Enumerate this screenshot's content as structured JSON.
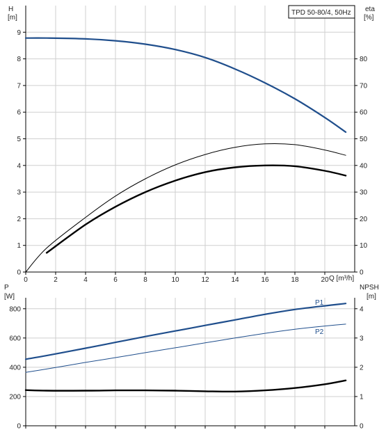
{
  "chart_data": [
    {
      "type": "line",
      "title": "TPD 50-80/4, 50Hz",
      "xlabel": "Q [m³/h]",
      "ylabel_left_name": "H",
      "ylabel_left_unit": "[m]",
      "ylabel_right_name": "eta",
      "ylabel_right_unit": "[%]",
      "xlim": [
        0,
        22
      ],
      "ylim_left": [
        0,
        10
      ],
      "ylim_right": [
        0,
        100
      ],
      "x_ticks": [
        "0",
        "2",
        "4",
        "6",
        "8",
        "10",
        "12",
        "14",
        "16",
        "18",
        "20"
      ],
      "y_left_ticks": [
        "0",
        "1",
        "2",
        "3",
        "4",
        "5",
        "6",
        "7",
        "8",
        "9"
      ],
      "y_right_ticks": [
        "0",
        "10",
        "20",
        "30",
        "40",
        "50",
        "60",
        "70",
        "80"
      ],
      "grid": true,
      "series": [
        {
          "axis": "left",
          "color": "#1f4e8c",
          "width": 2.2,
          "x": [
            0,
            1.4,
            4,
            6,
            8,
            10,
            12,
            14,
            16,
            18,
            20,
            21.4
          ],
          "y": [
            8.78,
            8.78,
            8.75,
            8.68,
            8.55,
            8.35,
            8.05,
            7.62,
            7.1,
            6.5,
            5.8,
            5.25
          ]
        },
        {
          "axis": "right",
          "color": "#000000",
          "width": 1,
          "x": [
            0,
            1.4,
            4,
            6,
            8,
            10,
            12,
            14,
            16,
            18,
            20,
            21.4
          ],
          "y": [
            0,
            9,
            20.5,
            28.5,
            35,
            40.2,
            44.1,
            46.8,
            48.1,
            47.8,
            45.8,
            43.8
          ]
        },
        {
          "axis": "left",
          "color": "#000000",
          "width": 2.4,
          "x": [
            1.4,
            4,
            6,
            8,
            10,
            12,
            14,
            16,
            18,
            20,
            21.4
          ],
          "y": [
            0.72,
            1.78,
            2.45,
            3.0,
            3.43,
            3.75,
            3.93,
            4.0,
            3.97,
            3.8,
            3.62
          ]
        }
      ]
    },
    {
      "type": "line",
      "xlabel": "",
      "ylabel_left_name": "P",
      "ylabel_left_unit": "[W]",
      "ylabel_right_name": "NPSH",
      "ylabel_right_unit": "[m]",
      "xlim": [
        0,
        22
      ],
      "ylim_left": [
        0,
        875
      ],
      "ylim_right": [
        0,
        4.375
      ],
      "y_left_ticks": [
        "0",
        "200",
        "400",
        "600",
        "800"
      ],
      "y_right_ticks": [
        "0",
        "1",
        "2",
        "3",
        "4"
      ],
      "grid": true,
      "series": [
        {
          "name": "P1",
          "axis": "left",
          "color": "#1f4e8c",
          "width": 2.2,
          "x": [
            0,
            1.4,
            4,
            6,
            8,
            10,
            12,
            14,
            16,
            18,
            20,
            21.4
          ],
          "y": [
            455,
            480,
            530,
            570,
            610,
            648,
            686,
            724,
            762,
            795,
            820,
            836
          ]
        },
        {
          "name": "P2",
          "axis": "left",
          "color": "#1f4e8c",
          "width": 1,
          "x": [
            0,
            1.4,
            4,
            6,
            8,
            10,
            12,
            14,
            16,
            18,
            20,
            21.4
          ],
          "y": [
            365,
            388,
            433,
            466,
            500,
            533,
            567,
            600,
            632,
            660,
            682,
            695
          ]
        },
        {
          "axis": "right",
          "color": "#000000",
          "width": 2.4,
          "x": [
            0,
            1.4,
            4,
            6,
            8,
            10,
            12,
            14,
            16,
            18,
            20,
            21.4
          ],
          "y": [
            1.22,
            1.2,
            1.2,
            1.21,
            1.21,
            1.2,
            1.18,
            1.17,
            1.21,
            1.29,
            1.42,
            1.55
          ]
        }
      ]
    }
  ]
}
